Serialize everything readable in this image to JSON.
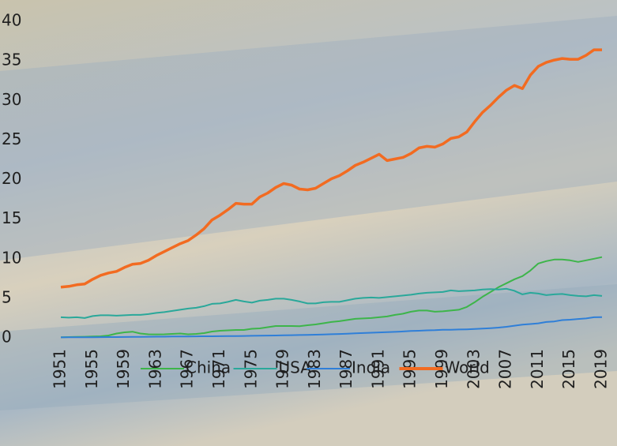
{
  "chart_data": {
    "type": "line",
    "x": [
      1951,
      1952,
      1953,
      1954,
      1955,
      1956,
      1957,
      1958,
      1959,
      1960,
      1961,
      1962,
      1963,
      1964,
      1965,
      1966,
      1967,
      1968,
      1969,
      1970,
      1971,
      1972,
      1973,
      1974,
      1975,
      1976,
      1977,
      1978,
      1979,
      1980,
      1981,
      1982,
      1983,
      1984,
      1985,
      1986,
      1987,
      1988,
      1989,
      1990,
      1991,
      1992,
      1993,
      1994,
      1995,
      1996,
      1997,
      1998,
      1999,
      2000,
      2001,
      2002,
      2003,
      2004,
      2005,
      2006,
      2007,
      2008,
      2009,
      2010,
      2011,
      2012,
      2013,
      2014,
      2015,
      2016,
      2017,
      2018,
      2019
    ],
    "xlim": [
      1951,
      2019
    ],
    "xticks": [
      1951,
      1955,
      1959,
      1963,
      1967,
      1971,
      1975,
      1979,
      1983,
      1987,
      1991,
      1995,
      1999,
      2003,
      2007,
      2011,
      2015,
      2019
    ],
    "ylim": [
      0,
      40
    ],
    "yticks": [
      0,
      5,
      10,
      15,
      20,
      25,
      30,
      35,
      40
    ],
    "grid": false,
    "legend": "bottom",
    "series": [
      {
        "name": "China",
        "color": "#3db54a",
        "values": [
          0.08,
          0.1,
          0.12,
          0.14,
          0.18,
          0.2,
          0.3,
          0.55,
          0.7,
          0.78,
          0.55,
          0.45,
          0.44,
          0.45,
          0.5,
          0.55,
          0.45,
          0.5,
          0.6,
          0.8,
          0.9,
          0.95,
          1.0,
          1.0,
          1.15,
          1.2,
          1.35,
          1.5,
          1.5,
          1.5,
          1.48,
          1.6,
          1.7,
          1.85,
          2.0,
          2.1,
          2.25,
          2.4,
          2.45,
          2.5,
          2.6,
          2.7,
          2.9,
          3.05,
          3.3,
          3.45,
          3.45,
          3.3,
          3.35,
          3.45,
          3.55,
          3.9,
          4.5,
          5.2,
          5.8,
          6.4,
          6.9,
          7.4,
          7.8,
          8.5,
          9.4,
          9.7,
          9.9,
          9.9,
          9.8,
          9.6,
          9.8,
          10.0,
          10.2
        ]
      },
      {
        "name": "USA",
        "color": "#2aa89a",
        "values": [
          2.6,
          2.55,
          2.6,
          2.5,
          2.75,
          2.85,
          2.85,
          2.8,
          2.85,
          2.9,
          2.9,
          3.0,
          3.15,
          3.25,
          3.4,
          3.55,
          3.7,
          3.8,
          4.0,
          4.3,
          4.35,
          4.55,
          4.8,
          4.6,
          4.45,
          4.7,
          4.8,
          4.95,
          4.95,
          4.8,
          4.6,
          4.35,
          4.35,
          4.5,
          4.55,
          4.55,
          4.75,
          4.95,
          5.05,
          5.1,
          5.05,
          5.15,
          5.25,
          5.35,
          5.45,
          5.6,
          5.7,
          5.75,
          5.8,
          6.0,
          5.9,
          5.95,
          6.0,
          6.1,
          6.15,
          6.1,
          6.2,
          5.95,
          5.5,
          5.7,
          5.6,
          5.4,
          5.5,
          5.55,
          5.4,
          5.3,
          5.25,
          5.4,
          5.3
        ]
      },
      {
        "name": "India",
        "color": "#2f7fd8",
        "values": [
          0.06,
          0.07,
          0.07,
          0.08,
          0.08,
          0.09,
          0.1,
          0.1,
          0.11,
          0.12,
          0.13,
          0.14,
          0.15,
          0.15,
          0.17,
          0.17,
          0.18,
          0.19,
          0.2,
          0.2,
          0.21,
          0.22,
          0.23,
          0.24,
          0.26,
          0.27,
          0.29,
          0.3,
          0.32,
          0.34,
          0.36,
          0.38,
          0.4,
          0.42,
          0.46,
          0.49,
          0.53,
          0.57,
          0.61,
          0.65,
          0.69,
          0.73,
          0.76,
          0.81,
          0.87,
          0.9,
          0.95,
          0.97,
          1.02,
          1.03,
          1.06,
          1.08,
          1.12,
          1.18,
          1.23,
          1.3,
          1.4,
          1.54,
          1.68,
          1.75,
          1.84,
          2.0,
          2.07,
          2.24,
          2.29,
          2.38,
          2.45,
          2.6,
          2.62
        ]
      },
      {
        "name": "World",
        "color": "#f26b21",
        "values": [
          6.4,
          6.5,
          6.7,
          6.8,
          7.4,
          7.9,
          8.2,
          8.4,
          8.9,
          9.3,
          9.4,
          9.8,
          10.4,
          10.9,
          11.4,
          11.9,
          12.3,
          13.0,
          13.8,
          14.9,
          15.5,
          16.2,
          17.0,
          16.9,
          16.9,
          17.8,
          18.3,
          19.0,
          19.5,
          19.3,
          18.8,
          18.7,
          18.9,
          19.5,
          20.1,
          20.5,
          21.1,
          21.8,
          22.2,
          22.7,
          23.2,
          22.4,
          22.6,
          22.8,
          23.3,
          24.0,
          24.2,
          24.1,
          24.5,
          25.2,
          25.4,
          26.0,
          27.3,
          28.5,
          29.4,
          30.4,
          31.3,
          31.9,
          31.5,
          33.2,
          34.3,
          34.8,
          35.1,
          35.3,
          35.2,
          35.2,
          35.7,
          36.4,
          36.4
        ]
      }
    ]
  }
}
